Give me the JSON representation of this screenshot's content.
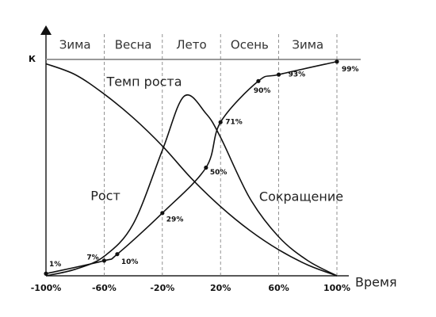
{
  "chart_data": {
    "type": "line",
    "y_label": "К",
    "x_label": "Время",
    "xlim": [
      -100,
      100
    ],
    "ylim": [
      0,
      100
    ],
    "xticks": [
      {
        "value": -100,
        "label": "-100%"
      },
      {
        "value": -60,
        "label": "-60%"
      },
      {
        "value": -20,
        "label": "-20%"
      },
      {
        "value": 20,
        "label": "20%"
      },
      {
        "value": 60,
        "label": "60%"
      },
      {
        "value": 100,
        "label": "100%"
      }
    ],
    "seasons": [
      "Зима",
      "Весна",
      "Лето",
      "Осень",
      "Зима"
    ],
    "annotations": [
      "Темп роста",
      "Рост",
      "Сокращение"
    ],
    "series": [
      {
        "color": "#111111",
        "markers": true,
        "x": [
          -100,
          -60,
          -51,
          -20,
          10,
          20,
          46,
          60,
          100
        ],
        "values": [
          1,
          7,
          10,
          29,
          50,
          71,
          90,
          93,
          99
        ],
        "value_labels": [
          "1%",
          "7%",
          "10%",
          "29%",
          "50%",
          "71%",
          "90%",
          "93%",
          "99%"
        ]
      },
      {
        "color": "#111111",
        "markers": false,
        "x": [
          -100,
          -80,
          -60,
          -40,
          -20,
          -5,
          10,
          20,
          40,
          60,
          80,
          100
        ],
        "values": [
          0,
          3,
          9,
          24,
          58,
          83,
          75,
          64,
          36,
          18,
          7,
          0
        ]
      },
      {
        "color": "#111111",
        "markers": false,
        "x": [
          -100,
          -80,
          -60,
          -40,
          -20,
          0,
          20,
          40,
          60,
          80,
          100
        ],
        "values": [
          98,
          93,
          84,
          73,
          60,
          45,
          32,
          21,
          12,
          5,
          0
        ]
      }
    ]
  }
}
